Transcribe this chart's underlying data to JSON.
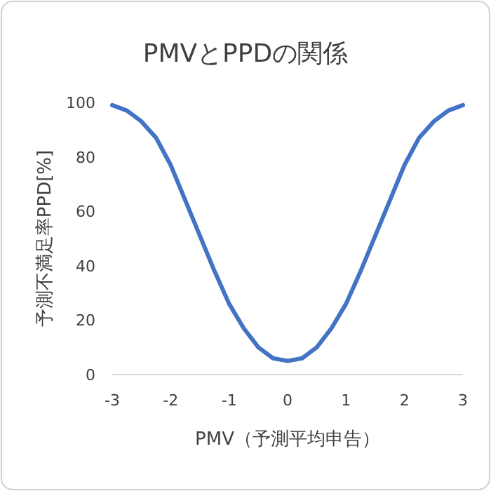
{
  "chart_data": {
    "type": "line",
    "title": "PMVとPPDの関係",
    "xlabel": "PMV（予測平均申告）",
    "ylabel": "予測不満足率PPD[%]",
    "x": [
      -3,
      -2.75,
      -2.5,
      -2.25,
      -2,
      -1.75,
      -1.5,
      -1.25,
      -1,
      -0.75,
      -0.5,
      -0.25,
      0,
      0.25,
      0.5,
      0.75,
      1,
      1.25,
      1.5,
      1.75,
      2,
      2.25,
      2.5,
      2.75,
      3
    ],
    "values": [
      99,
      97,
      93,
      87,
      77,
      64,
      51,
      38,
      26,
      17,
      10,
      6,
      5,
      6,
      10,
      17,
      26,
      38,
      51,
      64,
      77,
      87,
      93,
      97,
      99
    ],
    "color": "#4472c4",
    "line_style": "solid",
    "xlim": [
      -3,
      3
    ],
    "ylim": [
      0,
      100
    ],
    "xticks": [
      -3,
      -2,
      -1,
      0,
      1,
      2,
      3
    ],
    "yticks": [
      0,
      20,
      40,
      60,
      80,
      100
    ]
  }
}
